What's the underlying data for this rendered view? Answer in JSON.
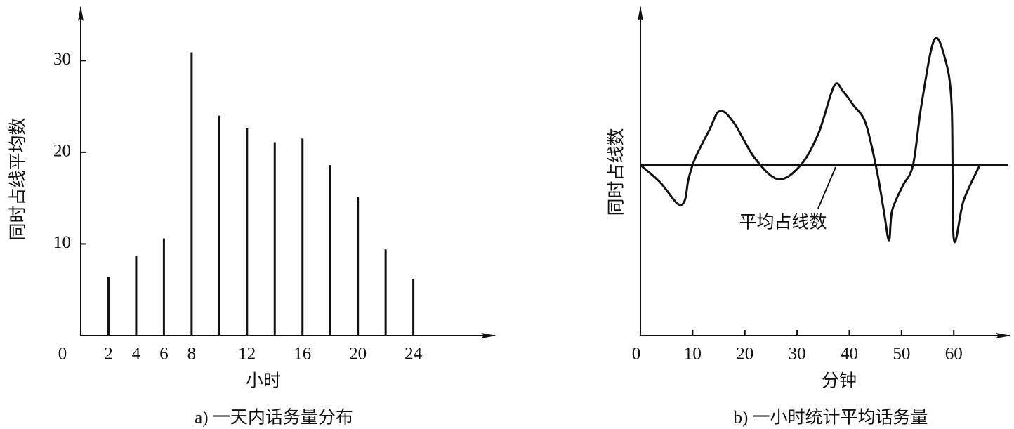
{
  "chart_data": [
    {
      "type": "bar",
      "caption": "a) 一天内话务量分布",
      "x_label": "小时",
      "y_label": "同时占线平均数",
      "x": [
        2,
        4,
        6,
        8,
        10,
        12,
        14,
        16,
        18,
        20,
        22,
        24
      ],
      "values": [
        6.4,
        8.7,
        10.6,
        30.9,
        24.0,
        22.6,
        21.1,
        21.5,
        18.6,
        15.1,
        9.4,
        6.2
      ],
      "color": "#111111",
      "xlim": [
        0,
        30
      ],
      "ylim": [
        0,
        36
      ],
      "xticks": [
        0,
        2,
        4,
        6,
        8,
        12,
        16,
        20,
        24
      ],
      "yticks": [
        10,
        20,
        30
      ]
    },
    {
      "type": "line",
      "caption": "b) 一小时统计平均话务量",
      "x_label": "分钟",
      "y_label": "同时占线数",
      "x": [
        0,
        3.8,
        7.1,
        8.5,
        9.2,
        10.5,
        13.2,
        15.2,
        17.9,
        21.9,
        26.4,
        30.7,
        34.1,
        37.1,
        38.8,
        40.8,
        43.1,
        45.2,
        46.6,
        47.6,
        48.2,
        50.2,
        52.2,
        53.8,
        56.2,
        58.2,
        59.6,
        60,
        61.9,
        65
      ],
      "values": [
        51.7,
        46.4,
        40,
        41,
        47.4,
        53.8,
        62.3,
        68.1,
        64.5,
        53.8,
        47.4,
        51.7,
        61.3,
        75.7,
        74,
        69.8,
        64.5,
        50.6,
        37.9,
        28.9,
        37.9,
        45.3,
        51.7,
        69.8,
        89.4,
        84.7,
        69.8,
        29.4,
        41,
        51.7
      ],
      "color": "#111111",
      "reference_line": {
        "value": 51.7,
        "label": "平均占线数"
      },
      "xlim": [
        0,
        71
      ],
      "ylim": [
        0,
        100
      ],
      "xticks": [
        0,
        10,
        20,
        30,
        40,
        50,
        60
      ]
    }
  ]
}
